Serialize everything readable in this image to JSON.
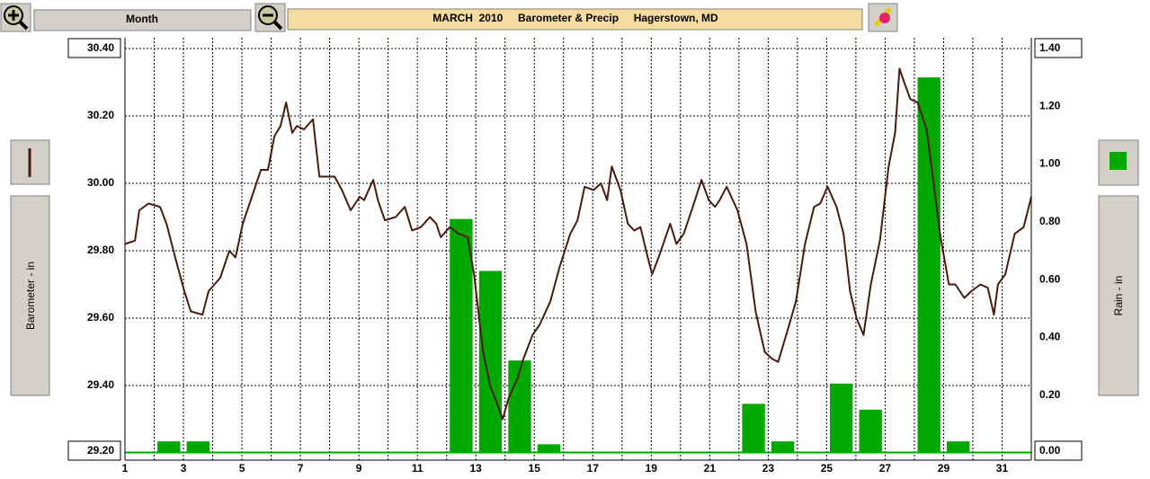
{
  "toolbar": {
    "range_button": "Month"
  },
  "chart_data": {
    "type": "combo",
    "title": "MARCH  2010     Barometer & Precip     Hagerstown, MD",
    "y_label": "Barometer - in",
    "y2_label": "Rain - in",
    "xlim": [
      1,
      32
    ],
    "xticks": [
      1,
      3,
      5,
      7,
      9,
      11,
      13,
      15,
      17,
      19,
      21,
      23,
      25,
      27,
      29,
      31
    ],
    "ylim": [
      29.2,
      30.4
    ],
    "yticks": [
      {
        "value": 29.2,
        "label": "29.20"
      },
      {
        "value": 29.4,
        "label": "29.40"
      },
      {
        "value": 29.6,
        "label": "29.60"
      },
      {
        "value": 29.8,
        "label": "29.80"
      },
      {
        "value": 30.0,
        "label": "30.00"
      },
      {
        "value": 30.2,
        "label": "30.20"
      },
      {
        "value": 30.4,
        "label": "30.40"
      }
    ],
    "y2lim": [
      0,
      1.4
    ],
    "y2ticks": [
      {
        "value": 0,
        "label": "0.00"
      },
      {
        "value": 0.2,
        "label": "0.20"
      },
      {
        "value": 0.4,
        "label": "0.40"
      },
      {
        "value": 0.6,
        "label": "0.60"
      },
      {
        "value": 0.8,
        "label": "0.80"
      },
      {
        "value": 1.0,
        "label": "1.00"
      },
      {
        "value": 1.2,
        "label": "1.20"
      },
      {
        "value": 1.4,
        "label": "1.40"
      }
    ],
    "grid": true,
    "series": [
      {
        "name": "Barometer",
        "type": "line",
        "color": "#4a1a10",
        "x": [
          1.0,
          1.34,
          1.49,
          1.8,
          2.2,
          2.42,
          2.72,
          3.03,
          3.25,
          3.65,
          3.86,
          4.26,
          4.57,
          4.78,
          5.03,
          5.34,
          5.65,
          5.89,
          6.11,
          6.32,
          6.51,
          6.72,
          6.88,
          7.12,
          7.43,
          7.65,
          7.95,
          8.17,
          8.42,
          8.72,
          9.03,
          9.18,
          9.49,
          9.65,
          9.89,
          10.26,
          10.57,
          10.82,
          11.12,
          11.43,
          11.65,
          11.8,
          12.11,
          12.42,
          12.72,
          12.94,
          13.25,
          13.49,
          13.71,
          13.92,
          14.11,
          14.42,
          14.63,
          14.94,
          15.18,
          15.55,
          15.86,
          16.23,
          16.48,
          16.72,
          17.03,
          17.28,
          17.49,
          17.65,
          17.95,
          18.2,
          18.42,
          18.63,
          18.88,
          19.03,
          19.25,
          19.65,
          19.86,
          20.11,
          20.42,
          20.72,
          20.97,
          21.18,
          21.34,
          21.58,
          21.95,
          22.26,
          22.57,
          22.88,
          23.12,
          23.34,
          23.65,
          23.95,
          24.26,
          24.57,
          24.78,
          25.03,
          25.34,
          25.58,
          25.8,
          26.02,
          26.26,
          26.51,
          26.82,
          27.12,
          27.34,
          27.49,
          27.65,
          27.86,
          28.11,
          28.42,
          28.66,
          28.88,
          29.18,
          29.4,
          29.71,
          29.95,
          30.26,
          30.51,
          30.72,
          30.86,
          31.11,
          31.43,
          31.74,
          32.0
        ],
        "values": [
          29.82,
          29.83,
          29.92,
          29.94,
          29.93,
          29.88,
          29.78,
          29.68,
          29.62,
          29.61,
          29.68,
          29.72,
          29.8,
          29.78,
          29.88,
          29.96,
          30.04,
          30.04,
          30.14,
          30.17,
          30.24,
          30.15,
          30.17,
          30.16,
          30.19,
          30.02,
          30.02,
          30.02,
          29.98,
          29.92,
          29.96,
          29.95,
          30.01,
          29.95,
          29.89,
          29.9,
          29.93,
          29.86,
          29.87,
          29.9,
          29.88,
          29.84,
          29.87,
          29.85,
          29.84,
          29.73,
          29.5,
          29.4,
          29.35,
          29.3,
          29.36,
          29.42,
          29.48,
          29.55,
          29.58,
          29.65,
          29.75,
          29.85,
          29.89,
          29.99,
          29.98,
          30.0,
          29.95,
          30.05,
          29.98,
          29.88,
          29.86,
          29.87,
          29.78,
          29.73,
          29.78,
          29.88,
          29.82,
          29.85,
          29.93,
          30.01,
          29.95,
          29.93,
          29.95,
          29.99,
          29.92,
          29.82,
          29.62,
          29.5,
          29.48,
          29.47,
          29.56,
          29.65,
          29.82,
          29.93,
          29.94,
          29.99,
          29.93,
          29.85,
          29.68,
          29.6,
          29.55,
          29.7,
          29.83,
          30.05,
          30.15,
          30.34,
          30.3,
          30.25,
          30.24,
          30.16,
          30.0,
          29.85,
          29.7,
          29.7,
          29.66,
          29.68,
          29.7,
          29.69,
          29.61,
          29.7,
          29.73,
          29.85,
          29.87,
          29.96
        ]
      },
      {
        "name": "Rain",
        "type": "bar",
        "axis": "y2",
        "color": "#00a800",
        "x": [
          1,
          2,
          3,
          4,
          5,
          6,
          7,
          8,
          9,
          10,
          11,
          12,
          13,
          14,
          15,
          16,
          17,
          18,
          19,
          20,
          21,
          22,
          23,
          24,
          25,
          26,
          27,
          28,
          29,
          30,
          31
        ],
        "values": [
          0,
          0.04,
          0.04,
          0,
          0,
          0,
          0,
          0,
          0,
          0,
          0,
          0.81,
          0.63,
          0.32,
          0.03,
          0,
          0,
          0,
          0,
          0,
          0,
          0.17,
          0.04,
          0,
          0.24,
          0.15,
          0,
          1.3,
          0.04,
          0,
          0
        ]
      }
    ]
  }
}
